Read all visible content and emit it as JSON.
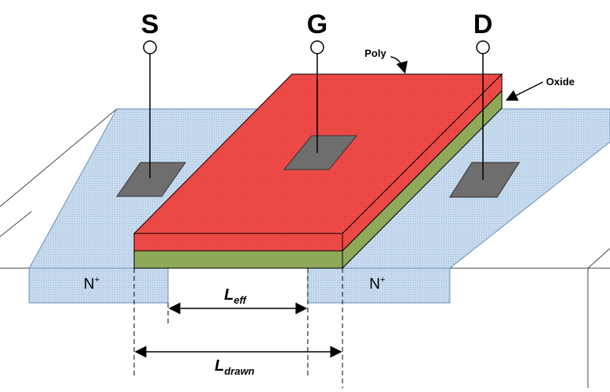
{
  "terminals": {
    "source": "S",
    "gate": "G",
    "drain": "D"
  },
  "callouts": {
    "poly": "Poly",
    "oxide": "Oxide"
  },
  "regions": {
    "left_n": "N",
    "left_n_sup": "+",
    "right_n": "N",
    "right_n_sup": "+"
  },
  "dimensions": {
    "eff_main": "L",
    "eff_sub": "eff",
    "drawn_main": "L",
    "drawn_sub": "drawn"
  },
  "colors": {
    "poly": "#ee4b48",
    "oxide": "#8fa85a",
    "diffusion": "#c8dcef",
    "contact": "#6e6e6e",
    "substrate": "#ffffff",
    "outline": "#000000"
  }
}
